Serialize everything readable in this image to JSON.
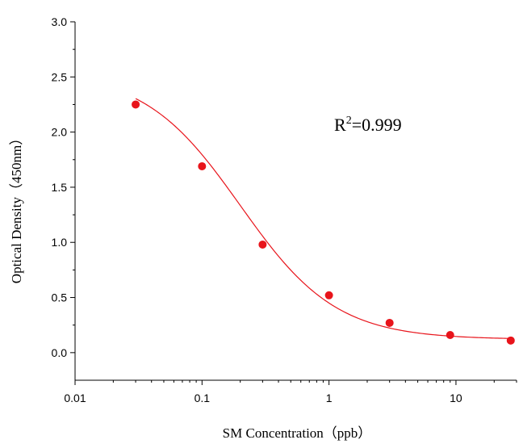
{
  "chart_data": {
    "type": "scatter",
    "xlabel": "SM Concentration（ppb）",
    "ylabel": "Optical Density（450nm）",
    "x_scale": "log",
    "xlim": [
      0.01,
      30
    ],
    "ylim": [
      -0.25,
      3.0
    ],
    "x_ticks": [
      0.01,
      0.1,
      1,
      10
    ],
    "x_tick_labels": [
      "0.01",
      "0.1",
      "1",
      "10"
    ],
    "y_ticks": [
      0.0,
      0.5,
      1.0,
      1.5,
      2.0,
      2.5,
      3.0
    ],
    "y_tick_labels": [
      "0.0",
      "0.5",
      "1.0",
      "1.5",
      "2.0",
      "2.5",
      "3.0"
    ],
    "grid": false,
    "series": [
      {
        "color": "#e8141b",
        "x": [
          0.03,
          0.1,
          0.3,
          1,
          3,
          9,
          27
        ],
        "y": [
          2.25,
          1.69,
          0.98,
          0.52,
          0.27,
          0.16,
          0.11
        ]
      }
    ],
    "fit_curve": {
      "color": "#e8141b",
      "model": "four-parameter logistic",
      "top": 2.55,
      "bottom": 0.12,
      "ec50": 0.2,
      "hill": 1.15
    },
    "annotation": {
      "base": "R",
      "superscript": "2",
      "text": "=0.999"
    }
  }
}
